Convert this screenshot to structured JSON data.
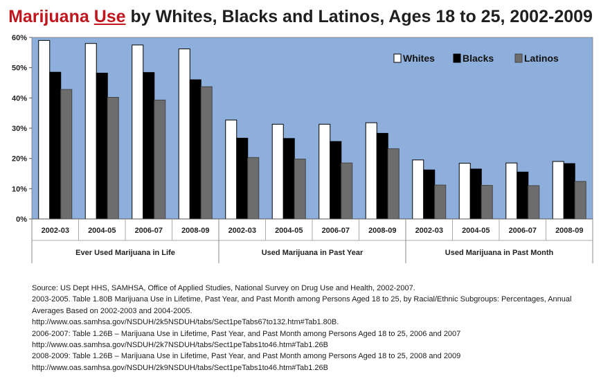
{
  "title": {
    "part1": "Marijuana",
    "part2": "Use",
    "part3": " by Whites, Blacks and Latinos, Ages 18 to 25, 2002-2009"
  },
  "colors": {
    "plot_bg": "#8eaedb",
    "whites": "#ffffff",
    "blacks": "#000000",
    "latinos": "#6d6d6d"
  },
  "chart_data": {
    "type": "bar",
    "title": "Marijuana Use by Whites, Blacks and Latinos, Ages 18 to 25, 2002-2009",
    "xlabel": "",
    "ylabel": "",
    "ylim": [
      0,
      60
    ],
    "yticks": [
      0,
      10,
      20,
      30,
      40,
      50,
      60
    ],
    "ytick_labels": [
      "0%",
      "10%",
      "20%",
      "30%",
      "40%",
      "50%",
      "60%"
    ],
    "grid": false,
    "legend_position": "top-right",
    "categories": [
      "2002-03",
      "2004-05",
      "2006-07",
      "2008-09",
      "2002-03",
      "2004-05",
      "2006-07",
      "2008-09",
      "2002-03",
      "2004-05",
      "2006-07",
      "2008-09"
    ],
    "groups": [
      {
        "label": "Ever Used Marijuana in Life",
        "span": 4
      },
      {
        "label": "Used Marijuana in Past Year",
        "span": 4
      },
      {
        "label": "Used Marijuana in Past Month",
        "span": 4
      }
    ],
    "series": [
      {
        "name": "Whites",
        "values": [
          59.0,
          58.0,
          57.5,
          56.2,
          32.7,
          31.3,
          31.3,
          31.8,
          19.5,
          18.4,
          18.5,
          19.0
        ]
      },
      {
        "name": "Blacks",
        "values": [
          48.5,
          48.2,
          48.4,
          46.0,
          26.7,
          26.6,
          25.6,
          28.3,
          16.2,
          16.5,
          15.5,
          18.3
        ]
      },
      {
        "name": "Latinos",
        "values": [
          42.8,
          40.2,
          39.3,
          43.7,
          20.3,
          19.8,
          18.5,
          23.2,
          11.2,
          11.1,
          11.0,
          12.4
        ]
      }
    ]
  },
  "source_lines": [
    "Source: US Dept HHS, SAMHSA, Office of Applied Studies, National Survey on Drug Use and Health, 2002-2007.",
    "2003-2005. Table  1.80B Marijuana Use in Lifetime, Past Year, and Past Month among Persons Aged 18 to 25, by Racial/Ethnic Subgroups: Percentages, Annual Averages Based on 2002-2003 and 2004-2005.",
    "http://www.oas.samhsa.gov/NSDUH/2k5NSDUH/tabs/Sect1peTabs67to132.htm#Tab1.80B.",
    "2006-2007:  Table 1.26B – Marijuana Use in Lifetime, Past Year, and Past Month among Persons Aged 18 to 25, 2006 and 2007",
    "http://www.oas.samhsa.gov/NSDUH/2k7NSDUH/tabs/Sect1peTabs1to46.htm#Tab1.26B",
    "2008-2009: Table 1.26B – Marijuana Use in Lifetime, Past Year, and Past Month among Persons Aged 18 to 25,  2008 and 2009",
    " http://www.oas.samhsa.gov/NSDUH/2k9NSDUH/tabs/Sect1peTabs1to46.htm#Tab1.26B"
  ]
}
